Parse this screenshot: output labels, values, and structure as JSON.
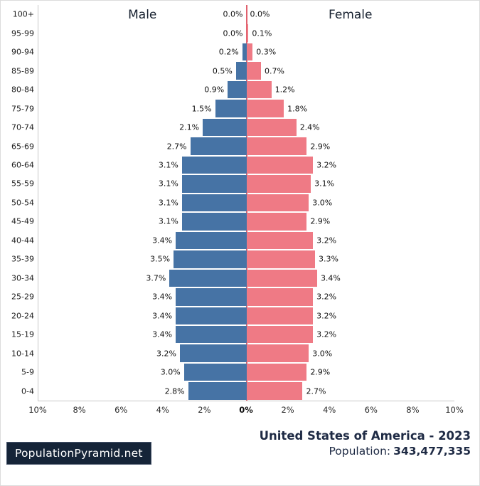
{
  "chart_data": {
    "type": "bar",
    "subtype": "population_pyramid",
    "title": "United States of America - 2023",
    "male_label": "Male",
    "female_label": "Female",
    "value_suffix": "%",
    "xlim": [
      0,
      10
    ],
    "x_ticks": [
      "10%",
      "8%",
      "6%",
      "4%",
      "2%",
      "0%",
      "2%",
      "4%",
      "6%",
      "8%",
      "10%"
    ],
    "categories": [
      "100+",
      "95-99",
      "90-94",
      "85-89",
      "80-84",
      "75-79",
      "70-74",
      "65-69",
      "60-64",
      "55-59",
      "50-54",
      "45-49",
      "40-44",
      "35-39",
      "30-34",
      "25-29",
      "20-24",
      "15-19",
      "10-14",
      "5-9",
      "0-4"
    ],
    "series": [
      {
        "name": "Male",
        "side": "left",
        "values": [
          0.0,
          0.0,
          0.2,
          0.5,
          0.9,
          1.5,
          2.1,
          2.7,
          3.1,
          3.1,
          3.1,
          3.1,
          3.4,
          3.5,
          3.7,
          3.4,
          3.4,
          3.4,
          3.2,
          3.0,
          2.8
        ]
      },
      {
        "name": "Female",
        "side": "right",
        "values": [
          0.0,
          0.1,
          0.3,
          0.7,
          1.2,
          1.8,
          2.4,
          2.9,
          3.2,
          3.1,
          3.0,
          2.9,
          3.2,
          3.3,
          3.4,
          3.2,
          3.2,
          3.2,
          3.0,
          2.9,
          2.7
        ]
      }
    ],
    "legend_position": "top",
    "grid": false
  },
  "footer": {
    "brand": "PopulationPyramid.net",
    "title": "United States of America - 2023",
    "population_label": "Population:",
    "population_value": "343,477,335"
  },
  "colors": {
    "male_bar": "#4673a5",
    "female_bar": "#ef7a85",
    "zero_line": "#e0616e",
    "brand_badge_bg": "#152438",
    "heading_text": "#1e2a44"
  }
}
